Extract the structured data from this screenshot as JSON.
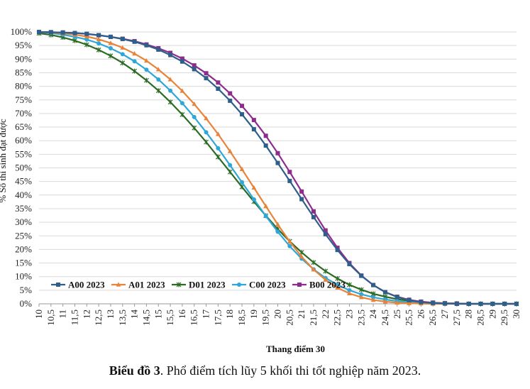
{
  "chart_data": {
    "type": "line",
    "title": "",
    "xlabel": "Thang điểm 30",
    "ylabel": "% Số thí sinh đạt được",
    "ylim": [
      0,
      100
    ],
    "xlim": [
      10,
      30
    ],
    "yticks": [
      "0%",
      "5%",
      "10%",
      "15%",
      "20%",
      "25%",
      "30%",
      "35%",
      "40%",
      "45%",
      "50%",
      "55%",
      "60%",
      "65%",
      "70%",
      "75%",
      "80%",
      "85%",
      "90%",
      "95%",
      "100%"
    ],
    "xticks": [
      "10",
      "10,5",
      "11",
      "11,5",
      "12",
      "12,5",
      "13",
      "13,5",
      "14",
      "14,5",
      "15",
      "15,5",
      "16",
      "16,5",
      "17",
      "17,5",
      "18",
      "18,5",
      "19",
      "19,5",
      "20",
      "20,5",
      "21",
      "21,5",
      "22",
      "22,5",
      "23",
      "23,5",
      "24",
      "24,5",
      "25",
      "25,5",
      "26",
      "26,5",
      "27",
      "27,5",
      "28",
      "28,5",
      "29",
      "29,5",
      "30"
    ],
    "x": [
      10,
      10.5,
      11,
      11.5,
      12,
      12.5,
      13,
      13.5,
      14,
      14.5,
      15,
      15.5,
      16,
      16.5,
      17,
      17.5,
      18,
      18.5,
      19,
      19.5,
      20,
      20.5,
      21,
      21.5,
      22,
      22.5,
      23,
      23.5,
      24,
      24.5,
      25,
      25.5,
      26,
      26.5,
      27,
      27.5,
      28,
      28.5,
      29,
      29.5,
      30
    ],
    "series": [
      {
        "name": "A00 2023",
        "color": "#2E5E8A",
        "marker": "square",
        "values": [
          100,
          99.9,
          99.8,
          99.6,
          99.3,
          98.8,
          98.2,
          97.4,
          96.4,
          95.1,
          93.5,
          91.5,
          89.1,
          86.3,
          83,
          79.1,
          74.7,
          69.7,
          64.2,
          58.2,
          51.8,
          45.2,
          38.5,
          31.9,
          25.6,
          19.8,
          14.6,
          10.3,
          6.9,
          4.3,
          2.5,
          1.3,
          0.6,
          0.3,
          0.1,
          0,
          0,
          0,
          0,
          0,
          0
        ]
      },
      {
        "name": "A01 2023",
        "color": "#E8843A",
        "marker": "triangle",
        "values": [
          100,
          99.8,
          99.5,
          99,
          98.3,
          97.3,
          95.9,
          94.2,
          92,
          89.4,
          86.2,
          82.5,
          78.3,
          73.5,
          68.2,
          62.4,
          56.1,
          49.5,
          42.7,
          35.9,
          29.2,
          22.9,
          17.3,
          12.6,
          8.8,
          5.9,
          3.8,
          2.4,
          1.4,
          0.8,
          0.4,
          0.2,
          0.1,
          0,
          0,
          0,
          0,
          0,
          0,
          0,
          0
        ]
      },
      {
        "name": "D01 2023",
        "color": "#2C6B24",
        "marker": "star",
        "values": [
          99.5,
          98.9,
          98,
          96.8,
          95.3,
          93.4,
          91.2,
          88.6,
          85.6,
          82.2,
          78.4,
          74.2,
          69.6,
          64.7,
          59.5,
          54,
          48.5,
          43,
          37.6,
          32.4,
          27.5,
          23,
          18.9,
          15.2,
          12,
          9.3,
          7,
          5.2,
          3.7,
          2.6,
          1.7,
          1.1,
          0.7,
          0.4,
          0.2,
          0.1,
          0,
          0,
          0,
          0,
          0
        ]
      },
      {
        "name": "C00 2023",
        "color": "#2FA6D8",
        "marker": "circle",
        "values": [
          100,
          99.6,
          99,
          98.2,
          97.2,
          95.8,
          94,
          91.8,
          89.2,
          86.1,
          82.5,
          78.4,
          73.8,
          68.7,
          63.1,
          57.2,
          51,
          44.7,
          38.4,
          32.3,
          26.5,
          21.2,
          16.6,
          12.7,
          9.5,
          7,
          5,
          3.5,
          2.4,
          1.6,
          1,
          0.6,
          0.3,
          0.2,
          0.1,
          0,
          0,
          0,
          0,
          0,
          0
        ]
      },
      {
        "name": "B00 2023",
        "color": "#8E2C8E",
        "marker": "square",
        "values": [
          100,
          99.9,
          99.8,
          99.6,
          99.3,
          98.8,
          98.2,
          97.5,
          96.6,
          95.4,
          94,
          92.3,
          90.2,
          87.7,
          84.8,
          81.4,
          77.4,
          72.8,
          67.6,
          61.8,
          55.4,
          48.5,
          41.3,
          34,
          27,
          20.6,
          15,
          10.4,
          6.9,
          4.3,
          2.6,
          1.5,
          0.8,
          0.4,
          0.2,
          0.1,
          0,
          0,
          0,
          0,
          0
        ]
      }
    ],
    "legend": "bottom-left"
  },
  "caption": {
    "label": "Biểu đồ 3",
    "text": ". Phổ điểm tích lũy 5 khối thi tốt nghiệp năm 2023."
  }
}
